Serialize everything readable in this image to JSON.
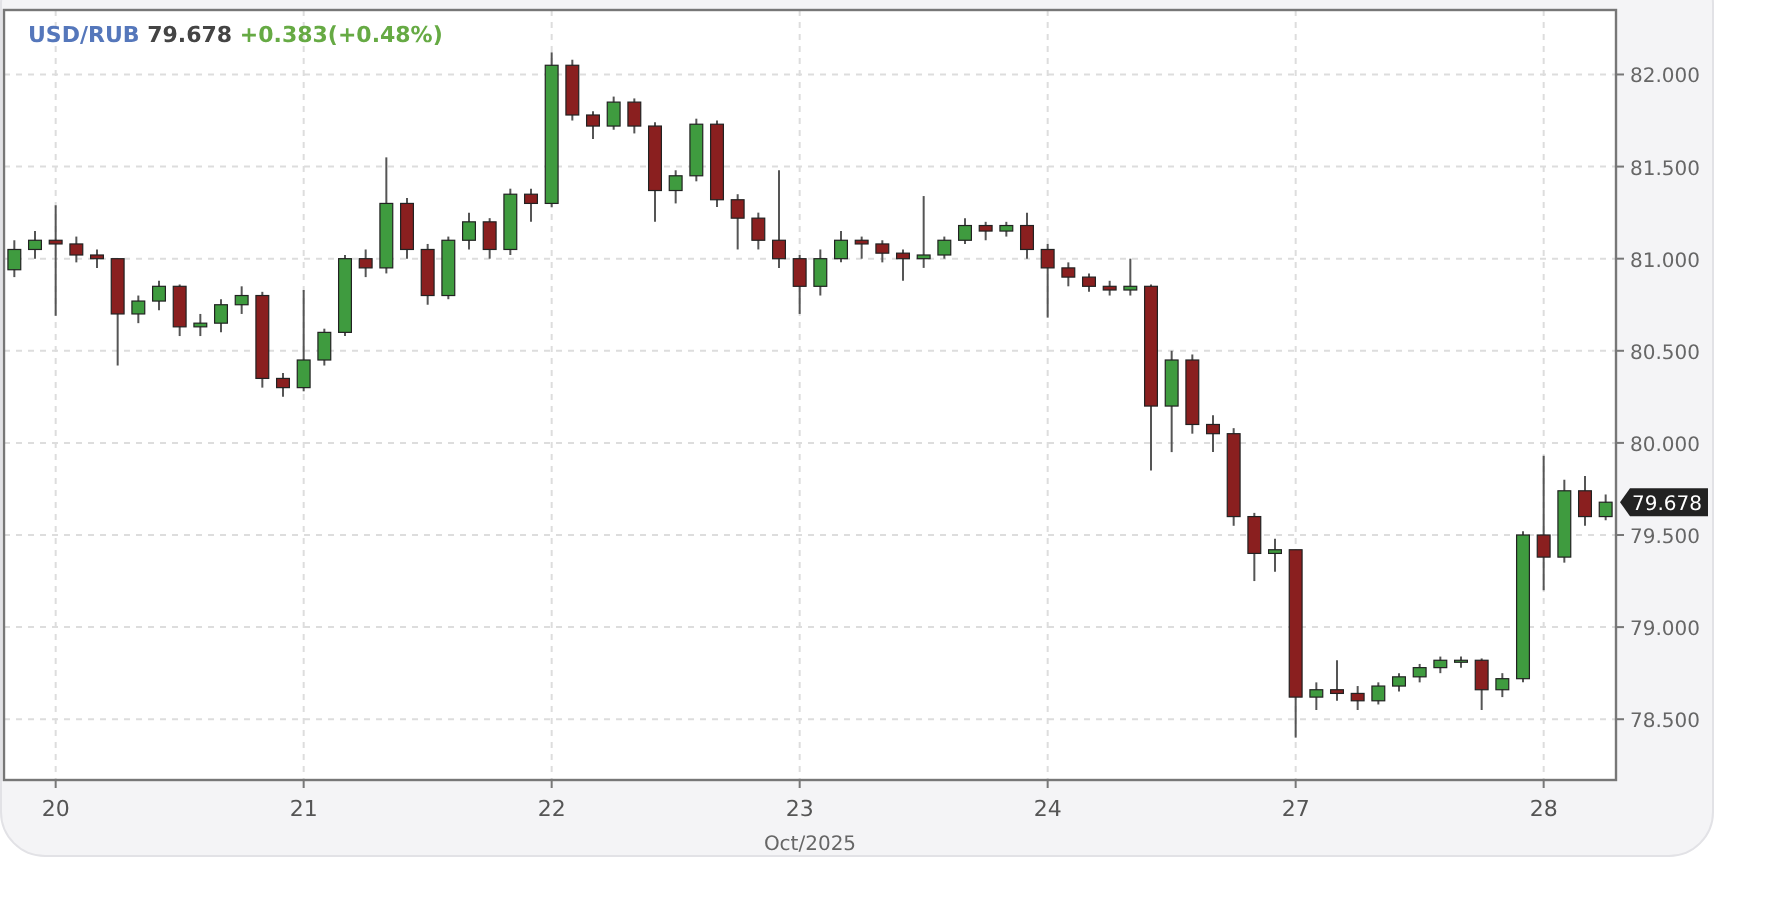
{
  "chart_data": {
    "type": "candlestick",
    "title": "USD/RUB 79.678 +0.383(+0.48%)",
    "xlabel": "Oct/2025",
    "categories": [
      null,
      null,
      "20",
      null,
      null,
      null,
      null,
      null,
      null,
      null,
      null,
      null,
      null,
      null,
      "21",
      null,
      null,
      null,
      null,
      null,
      null,
      null,
      null,
      null,
      null,
      null,
      "22",
      null,
      null,
      null,
      null,
      null,
      null,
      null,
      null,
      null,
      null,
      null,
      "23",
      null,
      null,
      null,
      null,
      null,
      null,
      null,
      null,
      null,
      null,
      null,
      "24",
      null,
      null,
      null,
      null,
      null,
      null,
      null,
      null,
      null,
      null,
      null,
      "27",
      null,
      null,
      null,
      null,
      null,
      null,
      null,
      null,
      null,
      null,
      null,
      "28",
      null,
      null,
      null
    ],
    "ohlc": [
      [
        80.94,
        81.1,
        80.9,
        81.05
      ],
      [
        81.05,
        81.15,
        81.0,
        81.1
      ],
      [
        81.1,
        81.29,
        80.69,
        81.08
      ],
      [
        81.08,
        81.12,
        80.98,
        81.02
      ],
      [
        81.02,
        81.05,
        80.95,
        81.0
      ],
      [
        81.0,
        81.0,
        80.42,
        80.7
      ],
      [
        80.7,
        80.8,
        80.65,
        80.77
      ],
      [
        80.77,
        80.88,
        80.72,
        80.85
      ],
      [
        80.85,
        80.86,
        80.58,
        80.63
      ],
      [
        80.63,
        80.7,
        80.58,
        80.65
      ],
      [
        80.65,
        80.78,
        80.6,
        80.75
      ],
      [
        80.75,
        80.85,
        80.7,
        80.8
      ],
      [
        80.8,
        80.82,
        80.3,
        80.35
      ],
      [
        80.35,
        80.38,
        80.25,
        80.3
      ],
      [
        80.3,
        80.83,
        80.28,
        80.45
      ],
      [
        80.45,
        80.62,
        80.42,
        80.6
      ],
      [
        80.6,
        81.02,
        80.58,
        81.0
      ],
      [
        81.0,
        81.05,
        80.9,
        80.95
      ],
      [
        80.95,
        81.55,
        80.92,
        81.3
      ],
      [
        81.3,
        81.33,
        81.0,
        81.05
      ],
      [
        81.05,
        81.08,
        80.75,
        80.8
      ],
      [
        80.8,
        81.12,
        80.78,
        81.1
      ],
      [
        81.1,
        81.25,
        81.05,
        81.2
      ],
      [
        81.2,
        81.22,
        81.0,
        81.05
      ],
      [
        81.05,
        81.38,
        81.02,
        81.35
      ],
      [
        81.35,
        81.38,
        81.2,
        81.3
      ],
      [
        81.3,
        82.12,
        81.28,
        82.05
      ],
      [
        82.05,
        82.08,
        81.75,
        81.78
      ],
      [
        81.78,
        81.8,
        81.65,
        81.72
      ],
      [
        81.72,
        81.88,
        81.7,
        81.85
      ],
      [
        81.85,
        81.87,
        81.68,
        81.72
      ],
      [
        81.72,
        81.74,
        81.2,
        81.37
      ],
      [
        81.37,
        81.48,
        81.3,
        81.45
      ],
      [
        81.45,
        81.76,
        81.42,
        81.73
      ],
      [
        81.73,
        81.75,
        81.28,
        81.32
      ],
      [
        81.32,
        81.35,
        81.05,
        81.22
      ],
      [
        81.22,
        81.25,
        81.05,
        81.1
      ],
      [
        81.1,
        81.48,
        80.95,
        81.0
      ],
      [
        81.0,
        81.02,
        80.7,
        80.85
      ],
      [
        80.85,
        81.05,
        80.8,
        81.0
      ],
      [
        81.0,
        81.15,
        80.98,
        81.1
      ],
      [
        81.1,
        81.12,
        81.0,
        81.08
      ],
      [
        81.08,
        81.1,
        80.98,
        81.03
      ],
      [
        81.03,
        81.05,
        80.88,
        81.0
      ],
      [
        81.0,
        81.34,
        80.95,
        81.02
      ],
      [
        81.02,
        81.12,
        81.0,
        81.1
      ],
      [
        81.1,
        81.22,
        81.08,
        81.18
      ],
      [
        81.18,
        81.2,
        81.1,
        81.15
      ],
      [
        81.15,
        81.2,
        81.12,
        81.18
      ],
      [
        81.18,
        81.25,
        81.0,
        81.05
      ],
      [
        81.05,
        81.08,
        80.68,
        80.95
      ],
      [
        80.95,
        80.98,
        80.85,
        80.9
      ],
      [
        80.9,
        80.92,
        80.82,
        80.85
      ],
      [
        80.85,
        80.88,
        80.8,
        80.83
      ],
      [
        80.83,
        81.0,
        80.8,
        80.85
      ],
      [
        80.85,
        80.86,
        79.85,
        80.2
      ],
      [
        80.2,
        80.5,
        79.95,
        80.45
      ],
      [
        80.45,
        80.48,
        80.05,
        80.1
      ],
      [
        80.1,
        80.15,
        79.95,
        80.05
      ],
      [
        80.05,
        80.08,
        79.55,
        79.6
      ],
      [
        79.6,
        79.62,
        79.25,
        79.4
      ],
      [
        79.4,
        79.48,
        79.3,
        79.42
      ],
      [
        79.42,
        79.42,
        78.4,
        78.62
      ],
      [
        78.62,
        78.7,
        78.55,
        78.66
      ],
      [
        78.66,
        78.82,
        78.6,
        78.64
      ],
      [
        78.64,
        78.68,
        78.55,
        78.6
      ],
      [
        78.6,
        78.7,
        78.58,
        78.68
      ],
      [
        78.68,
        78.75,
        78.65,
        78.73
      ],
      [
        78.73,
        78.8,
        78.7,
        78.78
      ],
      [
        78.78,
        78.84,
        78.75,
        78.82
      ],
      [
        78.82,
        78.84,
        78.78,
        78.82
      ],
      [
        78.82,
        78.83,
        78.55,
        78.66
      ],
      [
        78.66,
        78.75,
        78.62,
        78.72
      ],
      [
        78.72,
        79.52,
        78.7,
        79.5
      ],
      [
        79.5,
        79.93,
        79.2,
        79.38
      ],
      [
        79.38,
        79.8,
        79.35,
        79.74
      ],
      [
        79.74,
        79.82,
        79.55,
        79.6
      ],
      [
        79.6,
        79.72,
        79.58,
        79.678
      ]
    ],
    "ylim": [
      78.17,
      82.35
    ],
    "yticks": [
      {
        "value": 78.5,
        "label": "78.500"
      },
      {
        "value": 79,
        "label": "79.000"
      },
      {
        "value": 79.5,
        "label": "79.500"
      },
      {
        "value": 80,
        "label": "80.000"
      },
      {
        "value": 80.5,
        "label": "80.500"
      },
      {
        "value": 81,
        "label": "81.000"
      },
      {
        "value": 81.5,
        "label": "81.500"
      },
      {
        "value": 82,
        "label": "82.000"
      }
    ],
    "grid": true,
    "annotations": [
      {
        "text": "79.678",
        "y": 79.678
      }
    ]
  }
}
